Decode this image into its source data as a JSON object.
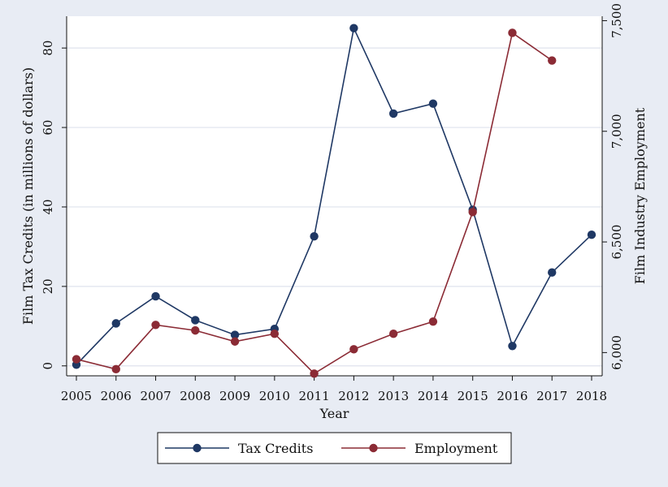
{
  "chart_data": {
    "type": "line",
    "title": "",
    "xlabel": "Year",
    "ylabel": "Film Tax Credits (in millions of dollars)",
    "y2label": "Film Industry Employment",
    "xlim": [
      2005,
      2018
    ],
    "ylim": [
      -2.5,
      88
    ],
    "y2lim": [
      5895,
      7520
    ],
    "x_ticks": [
      2005,
      2006,
      2007,
      2008,
      2009,
      2010,
      2011,
      2012,
      2013,
      2014,
      2015,
      2016,
      2017,
      2018
    ],
    "y_ticks": [
      {
        "value": 0,
        "label": "0"
      },
      {
        "value": 20,
        "label": "20"
      },
      {
        "value": 40,
        "label": "40"
      },
      {
        "value": 60,
        "label": "60"
      },
      {
        "value": 80,
        "label": "80"
      }
    ],
    "y2_ticks": [
      {
        "value": 6000,
        "label": "6,000"
      },
      {
        "value": 6500,
        "label": "6,500"
      },
      {
        "value": 7000,
        "label": "7,000"
      },
      {
        "value": 7500,
        "label": "7,500"
      }
    ],
    "grid": true,
    "legend_position": "bottom",
    "series": [
      {
        "name": "Tax Credits",
        "axis": "left",
        "color": "#1f3864",
        "x": [
          2005,
          2006,
          2007,
          2008,
          2009,
          2010,
          2011,
          2012,
          2013,
          2014,
          2015,
          2016,
          2017,
          2018
        ],
        "values": [
          0.3,
          10.7,
          17.5,
          11.5,
          7.8,
          9.3,
          32.6,
          85.0,
          63.5,
          66.0,
          39.3,
          5.0,
          23.5,
          33.0
        ]
      },
      {
        "name": "Employment",
        "axis": "right",
        "color": "#8b2b35",
        "x": [
          2005,
          2006,
          2007,
          2008,
          2009,
          2010,
          2011,
          2012,
          2013,
          2014,
          2015,
          2016,
          2017
        ],
        "values": [
          5970,
          5925,
          6125,
          6100,
          6050,
          6085,
          5905,
          6015,
          6085,
          6140,
          6635,
          7445,
          7320
        ]
      }
    ]
  }
}
